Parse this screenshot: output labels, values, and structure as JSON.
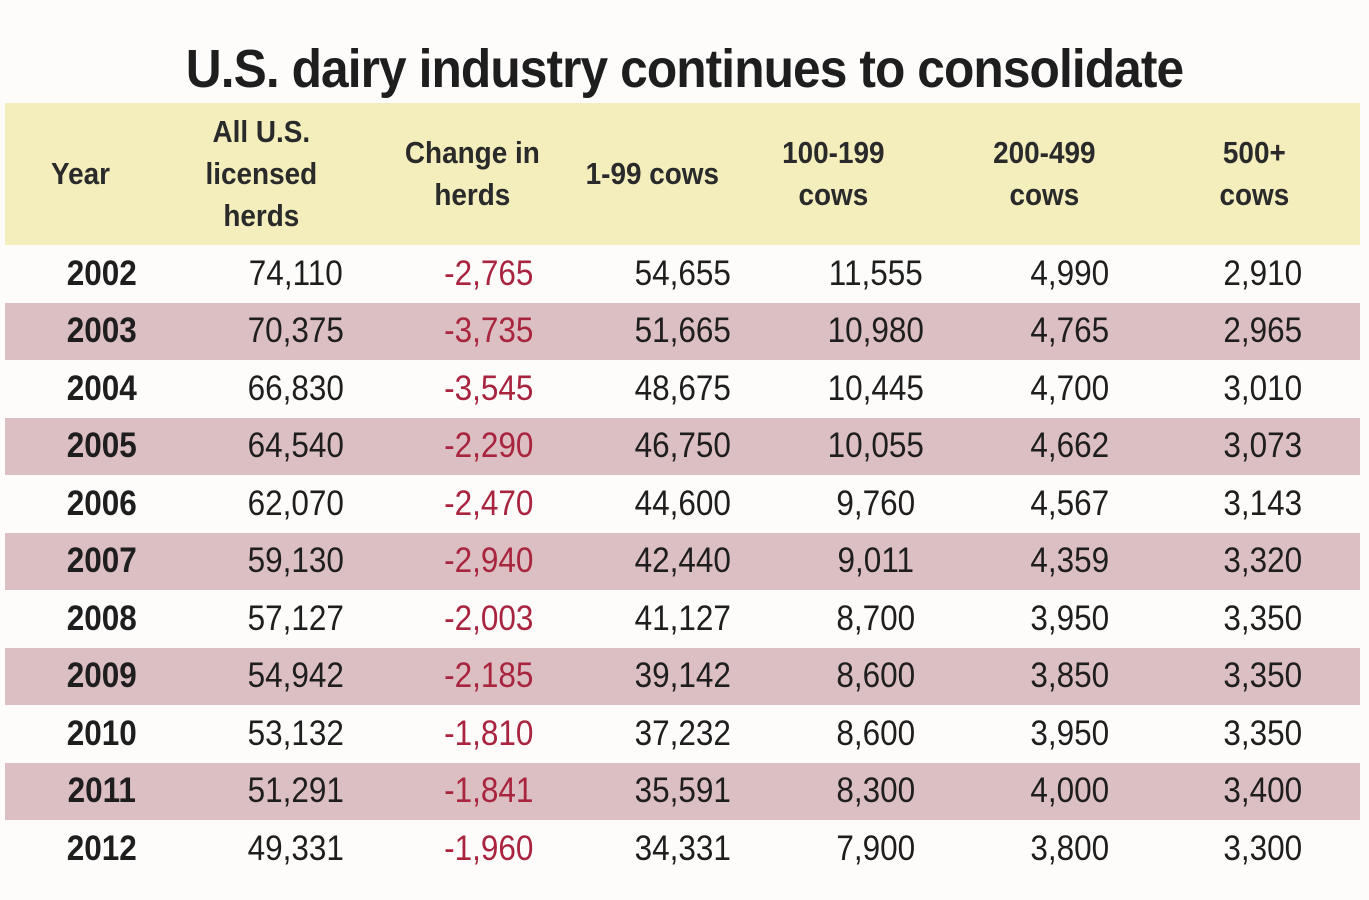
{
  "title": "U.S. dairy industry continues to consolidate",
  "colors": {
    "header_bg": "#f4eebd",
    "band_bg": "#dcbfc2",
    "negative": "#a8243f"
  },
  "chart_data": {
    "type": "table",
    "title": "U.S. dairy industry continues to consolidate",
    "columns": [
      "Year",
      "All U.S. licensed herds",
      "Change in herds",
      "1-99 cows",
      "100-199 cows",
      "200-499 cows",
      "500+ cows"
    ],
    "rows": [
      [
        "2002",
        "74,110",
        "-2,765",
        "54,655",
        "11,555",
        "4,990",
        "2,910"
      ],
      [
        "2003",
        "70,375",
        "-3,735",
        "51,665",
        "10,980",
        "4,765",
        "2,965"
      ],
      [
        "2004",
        "66,830",
        "-3,545",
        "48,675",
        "10,445",
        "4,700",
        "3,010"
      ],
      [
        "2005",
        "64,540",
        "-2,290",
        "46,750",
        "10,055",
        "4,662",
        "3,073"
      ],
      [
        "2006",
        "62,070",
        "-2,470",
        "44,600",
        "9,760",
        "4,567",
        "3,143"
      ],
      [
        "2007",
        "59,130",
        "-2,940",
        "42,440",
        "9,011",
        "4,359",
        "3,320"
      ],
      [
        "2008",
        "57,127",
        "-2,003",
        "41,127",
        "8,700",
        "3,950",
        "3,350"
      ],
      [
        "2009",
        "54,942",
        "-2,185",
        "39,142",
        "8,600",
        "3,850",
        "3,350"
      ],
      [
        "2010",
        "53,132",
        "-1,810",
        "37,232",
        "8,600",
        "3,950",
        "3,350"
      ],
      [
        "2011",
        "51,291",
        "-1,841",
        "35,591",
        "8,300",
        "4,000",
        "3,400"
      ],
      [
        "2012",
        "49,331",
        "-1,960",
        "34,331",
        "7,900",
        "3,800",
        "3,300"
      ]
    ]
  }
}
